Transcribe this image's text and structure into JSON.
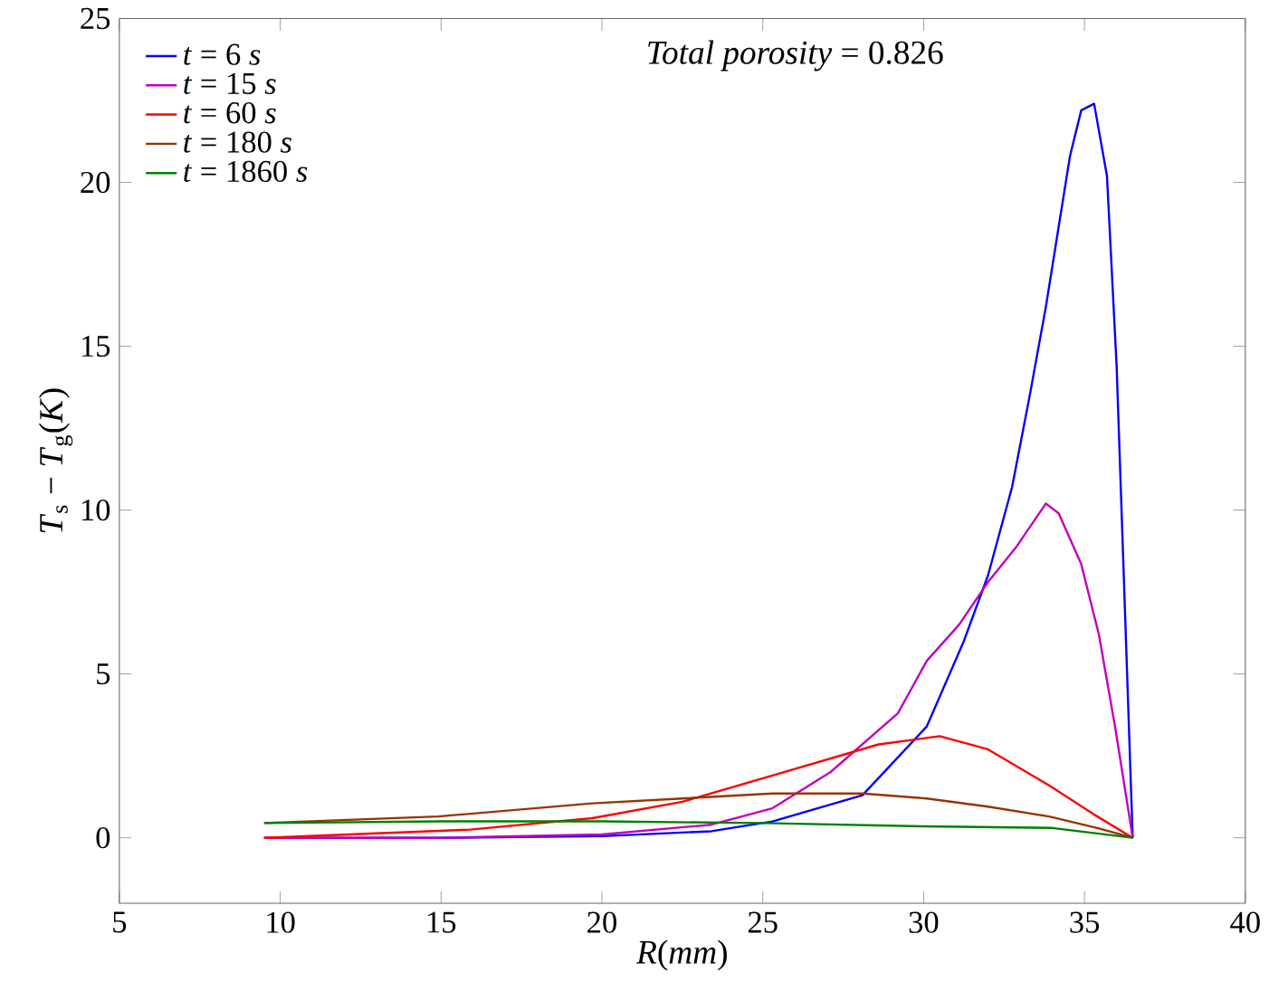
{
  "chart_data": {
    "type": "line",
    "xlabel": "*R*(*mm*)",
    "ylabel": "*T*$_{s}$ − *T*$_{g}$(*K*)",
    "annotations": [
      "*Total porosity* = 0.826"
    ],
    "xlim": [
      5,
      40
    ],
    "ylim": [
      -2,
      25
    ],
    "xticks": [
      5,
      10,
      15,
      20,
      25,
      30,
      35,
      40
    ],
    "yticks": [
      0,
      5,
      10,
      15,
      20,
      25
    ],
    "legend": "top left",
    "grid": false,
    "series": [
      {
        "name": "*t* = 6 *s*",
        "color": "#0000ff",
        "x": [
          9.5,
          15,
          20,
          23.4,
          25.3,
          28.1,
          30.1,
          31.25,
          32.0,
          32.75,
          33.3,
          33.8,
          34.55,
          34.9,
          35.3,
          35.7,
          36.0,
          36.5
        ],
        "values": [
          0,
          0,
          0.05,
          0.2,
          0.5,
          1.3,
          3.4,
          6.0,
          8.0,
          10.7,
          13.5,
          16.2,
          20.8,
          22.2,
          22.4,
          20.2,
          14.4,
          0
        ]
      },
      {
        "name": "*t* = 15 *s*",
        "color": "#c000c0",
        "x": [
          9.5,
          15,
          20,
          23.4,
          25.3,
          27.1,
          29.2,
          30.1,
          31.1,
          32.0,
          32.9,
          33.8,
          34.2,
          34.9,
          35.45,
          35.95,
          36.5
        ],
        "values": [
          0,
          0,
          0.1,
          0.4,
          0.9,
          2.0,
          3.8,
          5.4,
          6.5,
          7.8,
          8.9,
          10.2,
          9.9,
          8.35,
          6.2,
          3.4,
          0
        ]
      },
      {
        "name": "*t* = 60 *s*",
        "color": "#ff0000",
        "x": [
          9.5,
          15.9,
          19.7,
          22.5,
          25.3,
          28.6,
          30.5,
          32.0,
          33.9,
          35.4,
          36.5
        ],
        "values": [
          0,
          0.25,
          0.6,
          1.1,
          1.9,
          2.85,
          3.1,
          2.7,
          1.6,
          0.65,
          0
        ]
      },
      {
        "name": "*t* = 180 *s*",
        "color": "#993300",
        "x": [
          9.5,
          14.9,
          19.7,
          22.5,
          25.3,
          28.1,
          30.1,
          32.0,
          33.9,
          35.4,
          36.5
        ],
        "values": [
          0.45,
          0.65,
          1.05,
          1.2,
          1.35,
          1.35,
          1.2,
          0.95,
          0.65,
          0.3,
          0
        ]
      },
      {
        "name": "*t* = 1860 *s*",
        "color": "#008000",
        "x": [
          9.5,
          15,
          20,
          25,
          30,
          34,
          36.5
        ],
        "values": [
          0.45,
          0.5,
          0.5,
          0.45,
          0.35,
          0.3,
          0
        ]
      }
    ]
  }
}
